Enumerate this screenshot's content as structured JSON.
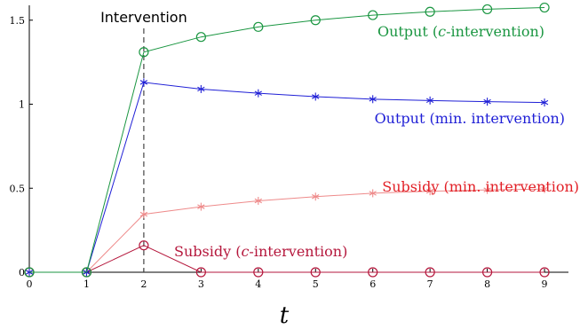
{
  "chart_data": {
    "type": "line",
    "title": "",
    "xlabel": "t",
    "ylabel": "",
    "xlim": [
      0,
      9
    ],
    "ylim": [
      0,
      1.6
    ],
    "x_ticks": [
      0,
      1,
      2,
      3,
      4,
      5,
      6,
      7,
      8,
      9
    ],
    "y_ticks": [
      0,
      0.5,
      1,
      1.5
    ],
    "y_tick_labels": [
      "0",
      "0.5",
      "1",
      "1.5"
    ],
    "grid": false,
    "annotation": {
      "text": "Intervention",
      "x": 2
    },
    "series": [
      {
        "name": "Output (c-intervention)",
        "label_parts": [
          "Output (",
          "c",
          "-intervention)"
        ],
        "color": "#1a9641",
        "marker": "circle",
        "x": [
          0,
          1,
          2,
          3,
          4,
          5,
          6,
          7,
          8,
          9
        ],
        "values": [
          0,
          0,
          1.31,
          1.4,
          1.46,
          1.5,
          1.53,
          1.55,
          1.565,
          1.575
        ]
      },
      {
        "name": "Output (min. intervention)",
        "label_parts": [
          "Output (min. intervention)",
          "",
          ""
        ],
        "color": "#1f1fd6",
        "marker": "star",
        "x": [
          0,
          1,
          2,
          3,
          4,
          5,
          6,
          7,
          8,
          9
        ],
        "values": [
          0,
          0,
          1.13,
          1.09,
          1.065,
          1.045,
          1.03,
          1.022,
          1.015,
          1.01
        ]
      },
      {
        "name": "Subsidy (min. intervention)",
        "label_parts": [
          "Subsidy (min. intervention)",
          "",
          ""
        ],
        "color": "#ee8a8a",
        "label_color": "#e21f26",
        "marker": "star",
        "x": [
          0,
          1,
          2,
          3,
          4,
          5,
          6,
          7,
          8,
          9
        ],
        "values": [
          0,
          0,
          0.345,
          0.39,
          0.425,
          0.45,
          0.47,
          0.482,
          0.49,
          0.495
        ]
      },
      {
        "name": "Subsidy (c-intervention)",
        "label_parts": [
          "Subsidy (",
          "c",
          "-intervention)"
        ],
        "color": "#b5173c",
        "marker": "circle",
        "x": [
          0,
          1,
          2,
          3,
          4,
          5,
          6,
          7,
          8,
          9
        ],
        "values": [
          0,
          0,
          0.16,
          0,
          0,
          0,
          0,
          0,
          0,
          0
        ]
      }
    ]
  }
}
